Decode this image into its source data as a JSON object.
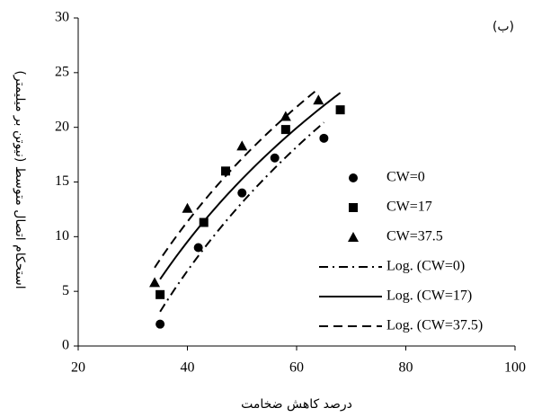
{
  "chart_data": {
    "type": "scatter",
    "title": "(ب)",
    "x_label": "درصد کاهش ضخامت",
    "y_label": "استحکام اتصال متوسط (نیوتن بر میلیمتر)",
    "xlim": [
      20,
      100
    ],
    "xticks": [
      20,
      40,
      60,
      80,
      100
    ],
    "ylim": [
      0,
      30
    ],
    "yticks": [
      0,
      5,
      10,
      15,
      20,
      25,
      30
    ],
    "grid": false,
    "legend": "right",
    "series": [
      {
        "name": "CW=0",
        "color": "#000000",
        "marker": "circle",
        "x": [
          35,
          42,
          50,
          56,
          65
        ],
        "values": [
          2,
          9,
          14,
          17.2,
          19
        ],
        "trendline": {
          "type": "log",
          "name": "Log. (CW=0)",
          "dash": "dash-dot"
        }
      },
      {
        "name": "CW=17",
        "color": "#000000",
        "marker": "square",
        "x": [
          35,
          43,
          47,
          58,
          68
        ],
        "values": [
          4.7,
          11.3,
          16,
          19.8,
          21.6
        ],
        "trendline": {
          "type": "log",
          "name": "Log. (CW=17)",
          "dash": "solid"
        }
      },
      {
        "name": "CW=37.5",
        "color": "#000000",
        "marker": "triangle",
        "x": [
          34,
          40,
          50,
          58,
          64
        ],
        "values": [
          5.8,
          12.6,
          18.3,
          21,
          22.5
        ],
        "trendline": {
          "type": "log",
          "name": "Log. (CW=37.5)",
          "dash": "dashed"
        }
      }
    ]
  }
}
